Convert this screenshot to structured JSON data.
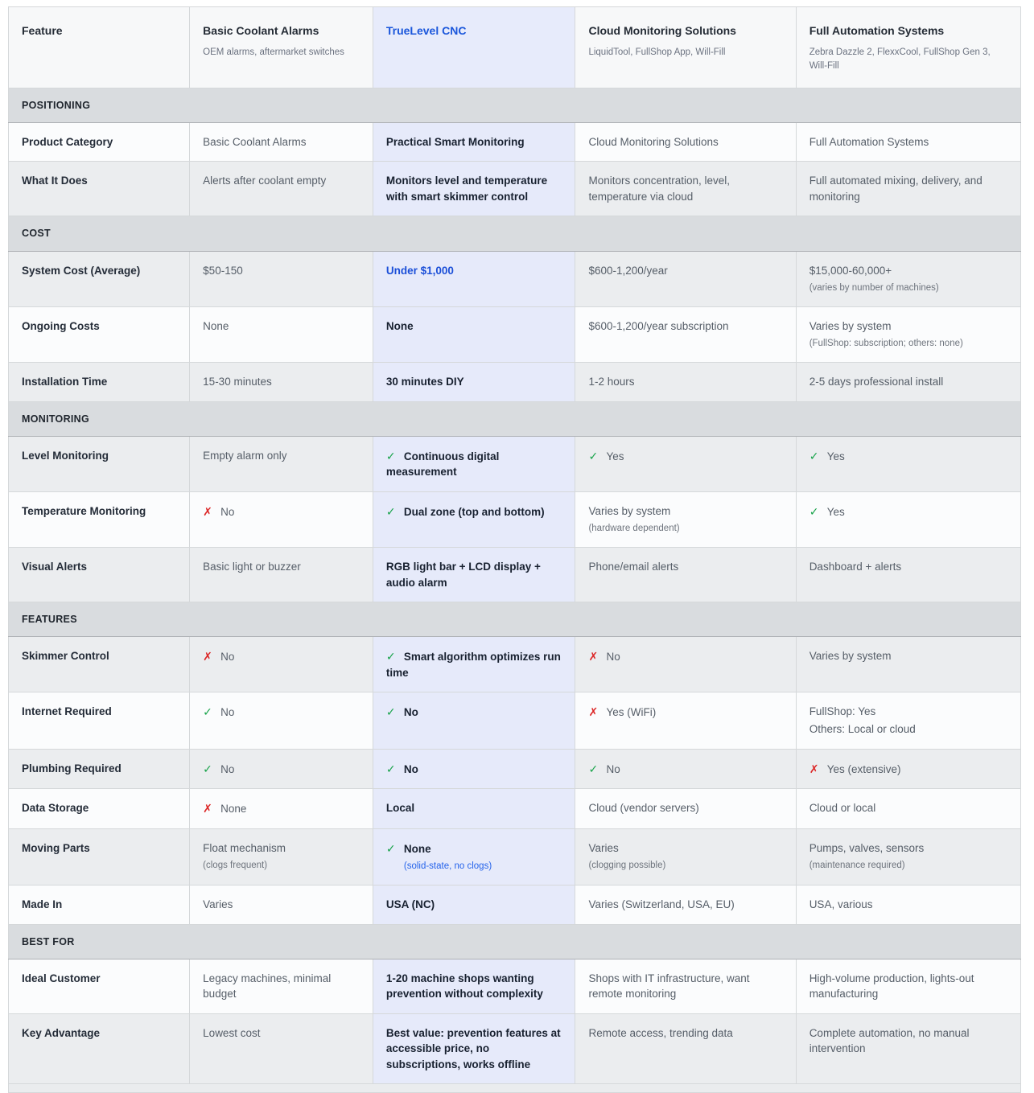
{
  "colors": {
    "highlight_column_bg": "#e6eafa",
    "link_blue": "#1d4ed8",
    "check_green": "#16a34a",
    "cross_red": "#dc2626",
    "section_band_bg": "#d9dcdf"
  },
  "icons": {
    "check": "✓",
    "cross": "✗"
  },
  "columns": [
    {
      "label": "Feature",
      "sublabel": ""
    },
    {
      "label": "Basic Coolant Alarms",
      "sublabel": "OEM alarms, aftermarket switches"
    },
    {
      "label": "TrueLevel CNC",
      "sublabel": "",
      "highlight": true
    },
    {
      "label": "Cloud Monitoring Solutions",
      "sublabel": "LiquidTool, FullShop App, Will-Fill"
    },
    {
      "label": "Full Automation Systems",
      "sublabel": "Zebra Dazzle 2, FlexxCool, FullShop Gen 3, Will-Fill"
    }
  ],
  "sections": [
    {
      "title": "POSITIONING",
      "rows": [
        {
          "feature": "Product Category",
          "cells": [
            {
              "text": "Basic Coolant Alarms"
            },
            {
              "text": "Practical Smart Monitoring"
            },
            {
              "text": "Cloud Monitoring Solutions"
            },
            {
              "text": "Full Automation Systems"
            }
          ]
        },
        {
          "feature": "What It Does",
          "cells": [
            {
              "text": "Alerts after coolant empty"
            },
            {
              "text": "Monitors level and temperature with smart skimmer control"
            },
            {
              "text": "Monitors concentration, level, temperature via cloud"
            },
            {
              "text": "Full automated mixing, delivery, and monitoring"
            }
          ]
        }
      ]
    },
    {
      "title": "COST",
      "rows": [
        {
          "feature": "System Cost (Average)",
          "cells": [
            {
              "text": "$50-150"
            },
            {
              "text": "Under $1,000",
              "style": "link"
            },
            {
              "text": "$600-1,200/year"
            },
            {
              "text": "$15,000-60,000+",
              "sub": "(varies by number of machines)"
            }
          ]
        },
        {
          "feature": "Ongoing Costs",
          "cells": [
            {
              "text": "None"
            },
            {
              "text": "None"
            },
            {
              "text": "$600-1,200/year subscription"
            },
            {
              "text": "Varies by system",
              "sub": "(FullShop: subscription; others: none)"
            }
          ]
        },
        {
          "feature": "Installation Time",
          "cells": [
            {
              "text": "15-30 minutes"
            },
            {
              "text": "30 minutes DIY"
            },
            {
              "text": "1-2 hours"
            },
            {
              "text": "2-5 days professional install"
            }
          ]
        }
      ]
    },
    {
      "title": "MONITORING",
      "rows": [
        {
          "feature": "Level Monitoring",
          "cells": [
            {
              "text": "Empty alarm only"
            },
            {
              "icon": "check",
              "text": "Continuous digital measurement"
            },
            {
              "icon": "check",
              "text": "Yes"
            },
            {
              "icon": "check",
              "text": "Yes"
            }
          ]
        },
        {
          "feature": "Temperature Monitoring",
          "cells": [
            {
              "icon": "cross",
              "text": "No"
            },
            {
              "icon": "check",
              "text": "Dual zone (top and bottom)"
            },
            {
              "text": "Varies by system",
              "sub": "(hardware dependent)"
            },
            {
              "icon": "check",
              "text": "Yes"
            }
          ]
        },
        {
          "feature": "Visual Alerts",
          "cells": [
            {
              "text": "Basic light or buzzer"
            },
            {
              "text": "RGB light bar + LCD display + audio alarm"
            },
            {
              "text": "Phone/email alerts"
            },
            {
              "text": "Dashboard + alerts"
            }
          ]
        }
      ]
    },
    {
      "title": "FEATURES",
      "rows": [
        {
          "feature": "Skimmer Control",
          "cells": [
            {
              "icon": "cross",
              "text": "No"
            },
            {
              "icon": "check",
              "text": "Smart algorithm optimizes run time"
            },
            {
              "icon": "cross",
              "text": "No"
            },
            {
              "text": "Varies by system"
            }
          ]
        },
        {
          "feature": "Internet Required",
          "cells": [
            {
              "icon": "check",
              "text": "No"
            },
            {
              "icon": "check",
              "text": "No"
            },
            {
              "icon": "cross",
              "text": "Yes (WiFi)"
            },
            {
              "text": "FullShop: Yes",
              "line2": "Others: Local or cloud"
            }
          ]
        },
        {
          "feature": "Plumbing Required",
          "cells": [
            {
              "icon": "check",
              "text": "No"
            },
            {
              "icon": "check",
              "text": "No"
            },
            {
              "icon": "check",
              "text": "No"
            },
            {
              "icon": "cross",
              "text": "Yes (extensive)"
            }
          ]
        },
        {
          "feature": "Data Storage",
          "cells": [
            {
              "icon": "cross",
              "text": "None"
            },
            {
              "text": "Local"
            },
            {
              "text": "Cloud (vendor servers)"
            },
            {
              "text": "Cloud or local"
            }
          ]
        },
        {
          "feature": "Moving Parts",
          "cells": [
            {
              "text": "Float mechanism",
              "sub": "(clogs frequent)"
            },
            {
              "icon": "check",
              "text": "None",
              "sub": "(solid-state, no clogs)",
              "subStyle": "link"
            },
            {
              "text": "Varies",
              "sub": "(clogging possible)"
            },
            {
              "text": "Pumps, valves, sensors",
              "sub": "(maintenance required)"
            }
          ]
        },
        {
          "feature": "Made In",
          "cells": [
            {
              "text": "Varies"
            },
            {
              "text": "USA (NC)"
            },
            {
              "text": "Varies (Switzerland, USA, EU)"
            },
            {
              "text": "USA, various"
            }
          ]
        }
      ]
    },
    {
      "title": "BEST FOR",
      "rows": [
        {
          "feature": "Ideal Customer",
          "cells": [
            {
              "text": "Legacy machines, minimal budget"
            },
            {
              "text": "1-20 machine shops wanting prevention without complexity"
            },
            {
              "text": "Shops with IT infrastructure, want remote monitoring"
            },
            {
              "text": "High-volume production, lights-out manufacturing"
            }
          ]
        },
        {
          "feature": "Key Advantage",
          "cells": [
            {
              "text": "Lowest cost"
            },
            {
              "text": "Best value: prevention features at accessible price, no subscriptions, works offline"
            },
            {
              "text": "Remote access, trending data"
            },
            {
              "text": "Complete automation, no manual intervention"
            }
          ]
        }
      ]
    }
  ]
}
